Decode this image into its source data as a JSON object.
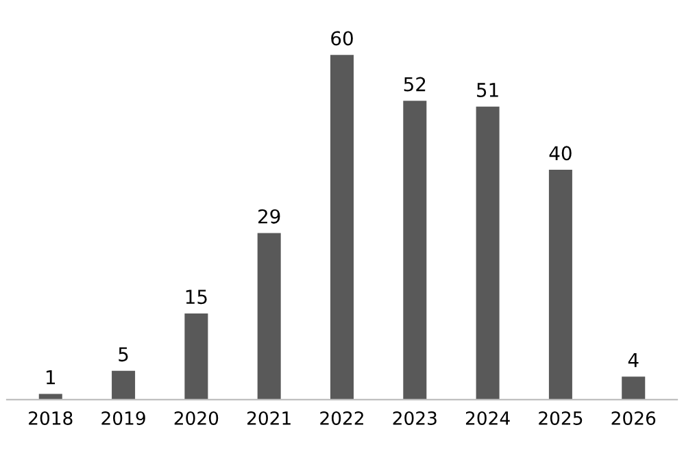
{
  "chart_data": {
    "type": "bar",
    "categories": [
      "2018",
      "2019",
      "2020",
      "2021",
      "2022",
      "2023",
      "2024",
      "2025",
      "2026"
    ],
    "values": [
      1,
      5,
      15,
      29,
      60,
      52,
      51,
      40,
      4
    ],
    "color": "#595959",
    "data_labels": true,
    "grid": false,
    "legend": false
  }
}
